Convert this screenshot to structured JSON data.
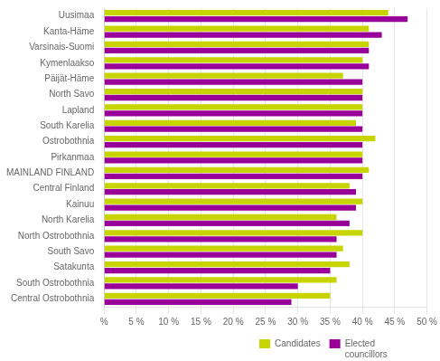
{
  "chart_data": {
    "type": "bar",
    "orientation": "horizontal",
    "categories": [
      "Uusimaa",
      "Kanta-Häme",
      "Varsinais-Suomi",
      "Kymenlaakso",
      "Päijät-Häme",
      "North Savo",
      "Lapland",
      "South Karelia",
      "Ostrobothnia",
      "Pirkanmaa",
      "MAINLAND FINLAND",
      "Central Finland",
      "Kainuu",
      "North Karelia",
      "North Ostrobothnia",
      "South Savo",
      "Satakunta",
      "South Ostrobothnia",
      "Central Ostrobothnia"
    ],
    "series": [
      {
        "name": "Candidates",
        "color": "#c8d400",
        "values": [
          44,
          41,
          41,
          40,
          37,
          40,
          40,
          39,
          42,
          40,
          41,
          38,
          40,
          36,
          40,
          37,
          38,
          36,
          35
        ]
      },
      {
        "name": "Elected\ncouncillors",
        "color": "#990099",
        "values": [
          47,
          43,
          41,
          41,
          40,
          40,
          40,
          40,
          40,
          40,
          40,
          39,
          39,
          38,
          36,
          36,
          35,
          30,
          29
        ]
      }
    ],
    "xlim": [
      0,
      50
    ],
    "xticks": [
      {
        "value": 0,
        "label": "%"
      },
      {
        "value": 5,
        "label": "5 %"
      },
      {
        "value": 10,
        "label": "10 %"
      },
      {
        "value": 15,
        "label": "15 %"
      },
      {
        "value": 20,
        "label": "20 %"
      },
      {
        "value": 25,
        "label": "25 %"
      },
      {
        "value": 30,
        "label": "30 %"
      },
      {
        "value": 35,
        "label": "35 %"
      },
      {
        "value": 40,
        "label": "40 %"
      },
      {
        "value": 45,
        "label": "45 %"
      },
      {
        "value": 50,
        "label": "50 %"
      }
    ],
    "grid": true,
    "legend": "lower right"
  }
}
